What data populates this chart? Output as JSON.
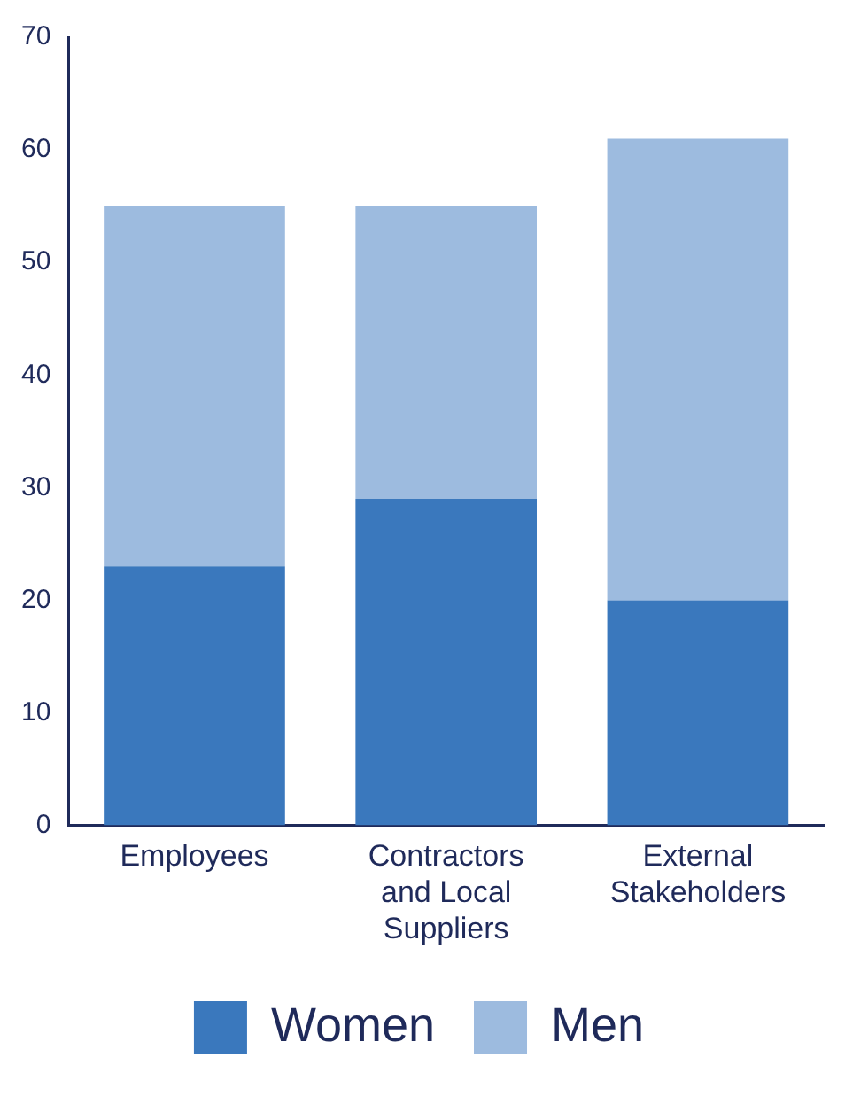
{
  "chart_data": {
    "type": "bar",
    "stacked": true,
    "categories": [
      "Employees",
      "Contractors and Local Suppliers",
      "External Stakeholders"
    ],
    "series": [
      {
        "name": "Women",
        "color": "#3a78bd",
        "values": [
          23,
          29,
          20
        ]
      },
      {
        "name": "Men",
        "color": "#9dbbdf",
        "values": [
          32,
          26,
          41
        ]
      }
    ],
    "ylim": [
      0,
      70
    ],
    "yticks": [
      0,
      10,
      20,
      30,
      40,
      50,
      60,
      70
    ],
    "grid": false,
    "legend": "bottom"
  }
}
